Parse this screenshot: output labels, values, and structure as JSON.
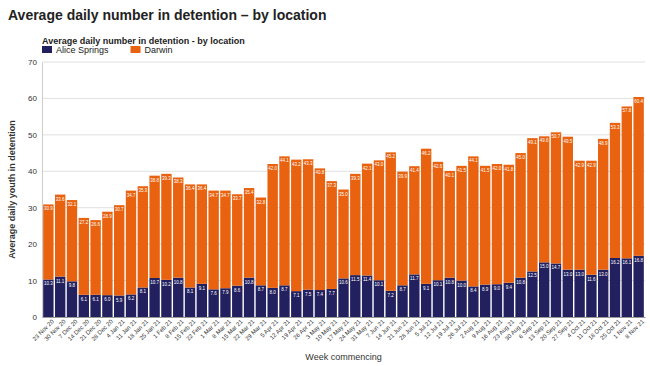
{
  "chart_data": {
    "type": "bar",
    "stacked": true,
    "data_labels": true,
    "grid": true,
    "legend": "top-left",
    "page_title": "Average daily number in detention – by location",
    "title": "Average daily number in detention - by location",
    "xlabel": "Week commencing",
    "ylabel": "Average daily youth in detention",
    "ylim": [
      0,
      70
    ],
    "yticks": [
      0,
      10,
      20,
      30,
      40,
      50,
      60,
      70
    ],
    "categories": [
      "23 Nov 20",
      "30 Nov 20",
      "7 Dec 20",
      "14 Dec 20",
      "21 Dec 20",
      "28 Dec 20",
      "4 Jan 21",
      "11 Jan 21",
      "18 Jan 21",
      "25 Jan 21",
      "1 Feb 21",
      "8 Feb 21",
      "15 Feb 21",
      "22 Feb 21",
      "1 Mar 21",
      "8 Mar 21",
      "15 Mar 21",
      "22 Mar 21",
      "29 Mar 21",
      "5 Apr 21",
      "12 Apr 21",
      "19 Apr 21",
      "26 Apr 21",
      "3 May 21",
      "10 May 21",
      "17 May 21",
      "24 May 21",
      "31 May 21",
      "7 Jun 21",
      "14 Jun 21",
      "21 Jun 21",
      "28 Jun 21",
      "5 Jul 21",
      "12 Jul 21",
      "19 Jul 21",
      "26 Jul 21",
      "2 Aug 21",
      "9 Aug 21",
      "16 Aug 21",
      "23 Aug 21",
      "30 Aug 21",
      "6 Sep 21",
      "13 Sep 21",
      "20 Sep 21",
      "27 Sep 21",
      "4 Oct 21",
      "11 Oct 21",
      "18 Oct 21",
      "25 Oct 21",
      "1 Nov 21",
      "8 Nov 21"
    ],
    "series": [
      {
        "name": "Alice Springs",
        "color": "#22205e",
        "values": [
          10.3,
          11.1,
          9.8,
          6.1,
          6.1,
          6.0,
          5.9,
          6.2,
          8.1,
          10.7,
          10.2,
          10.8,
          8.1,
          9.1,
          7.6,
          7.9,
          8.6,
          10.8,
          8.7,
          8.0,
          8.7,
          7.1,
          7.5,
          7.4,
          7.7,
          10.6,
          11.5,
          11.4,
          10.1,
          7.2,
          8.7,
          11.7,
          9.1,
          10.1,
          10.8,
          10.0,
          8.4,
          8.9,
          9.0,
          9.4,
          10.8,
          12.5,
          15.0,
          14.7,
          13.0,
          13.0,
          11.6,
          13.0,
          16.2,
          16.1,
          16.8
        ]
      },
      {
        "name": "Darwin",
        "color": "#e8620f",
        "values": [
          20.6,
          22.5,
          22.3,
          21.1,
          20.5,
          22.9,
          24.8,
          28.5,
          27.8,
          28.1,
          29.1,
          27.5,
          28.3,
          27.3,
          27.1,
          26.8,
          25.1,
          24.6,
          24.1,
          34.0,
          35.4,
          36.1,
          35.8,
          33.4,
          29.6,
          24.4,
          27.8,
          30.7,
          32.9,
          38.0,
          31.2,
          29.7,
          37.1,
          32.5,
          29.3,
          31.5,
          35.7,
          32.6,
          33.0,
          32.4,
          34.2,
          36.6,
          34.6,
          36.0,
          36.5,
          29.9,
          31.3,
          35.9,
          37.1,
          41.7,
          43.6
        ]
      }
    ],
    "totals": [
      30.9,
      33.6,
      32.1,
      27.2,
      26.6,
      28.9,
      30.7,
      34.7,
      35.9,
      38.8,
      39.3,
      38.3,
      36.4,
      36.4,
      34.7,
      34.7,
      33.7,
      35.4,
      32.8,
      42.0,
      44.1,
      43.2,
      43.3,
      40.8,
      37.3,
      35.0,
      39.3,
      42.1,
      43.0,
      45.2,
      39.9,
      41.4,
      46.2,
      42.6,
      40.1,
      41.5,
      44.1,
      41.5,
      42.0,
      41.8,
      45.0,
      49.1,
      49.6,
      50.7,
      49.5,
      42.9,
      42.9,
      48.9,
      53.3,
      57.8,
      60.4
    ]
  }
}
